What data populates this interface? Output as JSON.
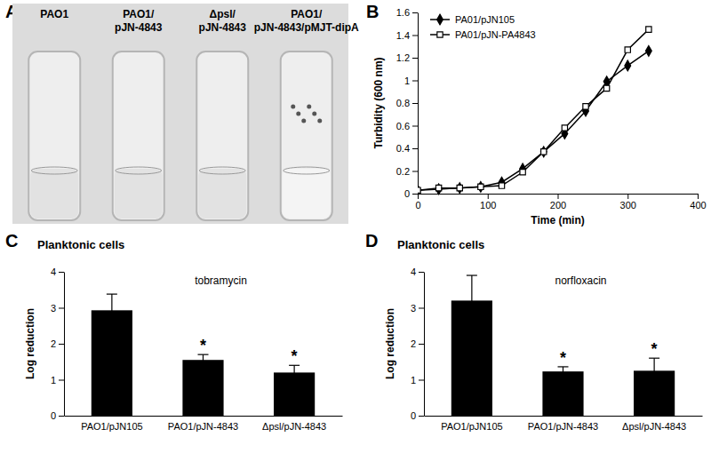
{
  "chart_data": [
    {
      "type": "image",
      "panel": "A",
      "labels": [
        [
          "PAO1"
        ],
        [
          "PAO1/",
          "pJN-4843"
        ],
        [
          "Δpsl/",
          "pJN-4843"
        ],
        [
          "PAO1/",
          "pJN-4843/pMJT-dipA"
        ]
      ]
    },
    {
      "type": "line",
      "panel": "B",
      "x_label": "Time (min)",
      "y_label": "Turbidity (600 nm)",
      "x": [
        0,
        30,
        60,
        90,
        120,
        150,
        180,
        210,
        240,
        270,
        300,
        330
      ],
      "xlim": [
        0,
        400
      ],
      "xticks": [
        0,
        100,
        200,
        300,
        400
      ],
      "ylim": [
        0,
        1.6
      ],
      "yticks": [
        0,
        0.2,
        0.4,
        0.6,
        0.8,
        1,
        1.2,
        1.4,
        1.6
      ],
      "legend": "top-left",
      "series": [
        {
          "name": "PA01/pJN105",
          "color": "#000000",
          "marker": "diamond",
          "values": [
            0.03,
            0.04,
            0.05,
            0.06,
            0.1,
            0.22,
            0.37,
            0.53,
            0.73,
            0.99,
            1.13,
            1.26
          ]
        },
        {
          "name": "PA01/pJN-PA4843",
          "color": "#000000",
          "marker": "square-open",
          "values": [
            0.03,
            0.05,
            0.05,
            0.06,
            0.07,
            0.19,
            0.37,
            0.58,
            0.77,
            0.93,
            1.27,
            1.45
          ]
        }
      ]
    },
    {
      "type": "bar",
      "panel": "C",
      "title": "Planktonic cells",
      "subtitle": "tobramycin",
      "y_label": "Log reduction",
      "categories": [
        "PAO1/pJN105",
        "PAO1/pJN-4843",
        "Δpsl/pJN-4843"
      ],
      "values": [
        2.93,
        1.55,
        1.2
      ],
      "errors": [
        0.45,
        0.15,
        0.2
      ],
      "color": "#000000",
      "ylim": [
        0,
        4
      ],
      "yticks": [
        0,
        1,
        2,
        3,
        4
      ],
      "annotations": [
        {
          "category": "PAO1/pJN-4843",
          "text": "*"
        },
        {
          "category": "Δpsl/pJN-4843",
          "text": "*"
        }
      ]
    },
    {
      "type": "bar",
      "panel": "D",
      "title": "Planktonic cells",
      "subtitle": "norfloxacin",
      "y_label": "Log reduction",
      "categories": [
        "PAO1/pJN105",
        "PAO1/pJN-4843",
        "Δpsl/pJN-4843"
      ],
      "values": [
        3.2,
        1.23,
        1.25
      ],
      "errors": [
        0.7,
        0.13,
        0.35
      ],
      "color": "#000000",
      "ylim": [
        0,
        4
      ],
      "yticks": [
        0,
        1,
        2,
        3,
        4
      ],
      "annotations": [
        {
          "category": "PAO1/pJN-4843",
          "text": "*"
        },
        {
          "category": "Δpsl/pJN-4843",
          "text": "*"
        }
      ]
    }
  ]
}
